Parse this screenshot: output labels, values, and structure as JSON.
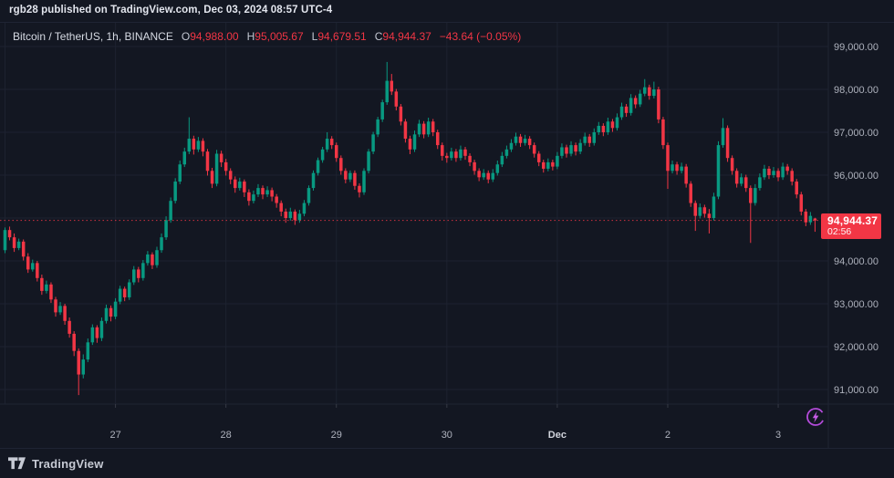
{
  "attribution": "rgb28 published on TradingView.com, Dec 03, 2024 08:57 UTC-4",
  "legend": {
    "symbol": "Bitcoin / TetherUS, 1h, BINANCE",
    "o_label": "O",
    "o_value": "94,988.00",
    "h_label": "H",
    "h_value": "95,005.67",
    "l_label": "L",
    "l_value": "94,679.51",
    "c_label": "C",
    "c_value": "94,944.37",
    "change": "−43.64 (−0.05%)"
  },
  "price_badge": {
    "price": "94,944.37",
    "countdown": "02:56"
  },
  "footer": {
    "brand": "TradingView"
  },
  "colors": {
    "background": "#131722",
    "up": "#089981",
    "down": "#f23645",
    "badge": "#f23645",
    "grid": "#1d2230",
    "axis_text": "#aeb2bd",
    "axis_text_bright": "#d1d4dc",
    "tick_mark": "#363a45",
    "separator": "#1f2433",
    "accent_purple": "#b44bdb"
  },
  "chart_data": {
    "type": "candlestick",
    "symbol": "Bitcoin / TetherUS",
    "interval": "1h",
    "exchange": "BINANCE",
    "last": {
      "open": 94988.0,
      "high": 95005.67,
      "low": 94679.51,
      "close": 94944.37,
      "change": -43.64,
      "change_pct": -0.05
    },
    "price_line": 94944.37,
    "ylim": [
      90660,
      99550
    ],
    "grid": true,
    "y_ticks": [
      {
        "label": "99,000.00",
        "value": 99000
      },
      {
        "label": "98,000.00",
        "value": 98000
      },
      {
        "label": "97,000.00",
        "value": 97000
      },
      {
        "label": "96,000.00",
        "value": 96000
      },
      {
        "label": "95,000.00",
        "value": 95000
      },
      {
        "label": "94,000.00",
        "value": 94000
      },
      {
        "label": "93,000.00",
        "value": 93000
      },
      {
        "label": "92,000.00",
        "value": 92000
      },
      {
        "label": "91,000.00",
        "value": 91000
      }
    ],
    "x_ticks": [
      {
        "label": "27",
        "index": 24,
        "bold": false
      },
      {
        "label": "28",
        "index": 48,
        "bold": false
      },
      {
        "label": "29",
        "index": 72,
        "bold": false
      },
      {
        "label": "30",
        "index": 96,
        "bold": false
      },
      {
        "label": "Dec",
        "index": 120,
        "bold": true
      },
      {
        "label": "2",
        "index": 144,
        "bold": false
      },
      {
        "label": "3",
        "index": 168,
        "bold": false
      }
    ],
    "day_boundaries": [
      0,
      24,
      48,
      72,
      96,
      120,
      144,
      168
    ],
    "candles": [
      [
        94250,
        94780,
        94180,
        94720
      ],
      [
        94720,
        94800,
        94480,
        94550
      ],
      [
        94550,
        94640,
        94210,
        94300
      ],
      [
        94300,
        94520,
        94250,
        94450
      ],
      [
        94450,
        94500,
        94010,
        94100
      ],
      [
        94100,
        94180,
        93720,
        93800
      ],
      [
        93800,
        94030,
        93750,
        93950
      ],
      [
        93950,
        94000,
        93520,
        93600
      ],
      [
        93600,
        93680,
        93210,
        93300
      ],
      [
        93300,
        93540,
        93240,
        93450
      ],
      [
        93450,
        93500,
        93020,
        93100
      ],
      [
        93100,
        93160,
        92700,
        92800
      ],
      [
        92800,
        93040,
        92740,
        92950
      ],
      [
        92950,
        93000,
        92510,
        92600
      ],
      [
        92600,
        92680,
        92210,
        92300
      ],
      [
        92300,
        92360,
        91780,
        91900
      ],
      [
        91900,
        91960,
        90870,
        91350
      ],
      [
        91350,
        91820,
        91260,
        91700
      ],
      [
        91700,
        92190,
        91640,
        92100
      ],
      [
        92100,
        92520,
        92040,
        92450
      ],
      [
        92450,
        92500,
        92090,
        92200
      ],
      [
        92200,
        92680,
        92130,
        92600
      ],
      [
        92600,
        92980,
        92540,
        92900
      ],
      [
        92900,
        92960,
        92590,
        92700
      ],
      [
        92700,
        93130,
        92640,
        93050
      ],
      [
        93050,
        93420,
        92990,
        93350
      ],
      [
        93350,
        93400,
        93060,
        93150
      ],
      [
        93150,
        93570,
        93090,
        93500
      ],
      [
        93500,
        93880,
        93440,
        93800
      ],
      [
        93800,
        93860,
        93500,
        93600
      ],
      [
        93600,
        94020,
        93540,
        93950
      ],
      [
        93950,
        94230,
        93890,
        94150
      ],
      [
        94150,
        94200,
        93810,
        93900
      ],
      [
        93900,
        94330,
        93840,
        94250
      ],
      [
        94250,
        94640,
        94190,
        94550
      ],
      [
        94550,
        95040,
        94490,
        94950
      ],
      [
        94950,
        95480,
        94890,
        95400
      ],
      [
        95400,
        95930,
        95340,
        95850
      ],
      [
        95850,
        96340,
        95790,
        96250
      ],
      [
        96250,
        96640,
        96190,
        96550
      ],
      [
        96550,
        97350,
        96490,
        96850
      ],
      [
        96850,
        96920,
        96480,
        96600
      ],
      [
        96600,
        96890,
        96540,
        96800
      ],
      [
        96800,
        96860,
        96440,
        96550
      ],
      [
        96550,
        96610,
        95990,
        96100
      ],
      [
        96100,
        96170,
        95700,
        95800
      ],
      [
        95800,
        96590,
        95740,
        96500
      ],
      [
        96500,
        96570,
        96190,
        96300
      ],
      [
        96300,
        96380,
        95990,
        96100
      ],
      [
        96100,
        96160,
        95790,
        95900
      ],
      [
        95900,
        95970,
        95590,
        95700
      ],
      [
        95700,
        95940,
        95640,
        95850
      ],
      [
        95850,
        95900,
        95490,
        95600
      ],
      [
        95600,
        95670,
        95290,
        95400
      ],
      [
        95400,
        95640,
        95340,
        95550
      ],
      [
        95550,
        95790,
        95490,
        95700
      ],
      [
        95700,
        95760,
        95440,
        95550
      ],
      [
        95550,
        95740,
        95490,
        95650
      ],
      [
        95650,
        95710,
        95390,
        95500
      ],
      [
        95500,
        95560,
        95240,
        95350
      ],
      [
        95350,
        95410,
        95040,
        95150
      ],
      [
        95150,
        95220,
        94890,
        95000
      ],
      [
        95000,
        95240,
        94940,
        95150
      ],
      [
        95150,
        95200,
        94840,
        94950
      ],
      [
        94950,
        95190,
        94890,
        95100
      ],
      [
        95100,
        95420,
        95040,
        95350
      ],
      [
        95350,
        95760,
        95290,
        95700
      ],
      [
        95700,
        96110,
        95640,
        96050
      ],
      [
        96050,
        96410,
        95990,
        96350
      ],
      [
        96350,
        96660,
        96290,
        96600
      ],
      [
        96600,
        97000,
        96540,
        96850
      ],
      [
        96850,
        96910,
        96610,
        96700
      ],
      [
        96700,
        96760,
        96310,
        96400
      ],
      [
        96400,
        96460,
        96010,
        96100
      ],
      [
        96100,
        96160,
        95810,
        95900
      ],
      [
        95900,
        96110,
        95840,
        96050
      ],
      [
        96050,
        96110,
        95660,
        95750
      ],
      [
        95750,
        95810,
        95480,
        95600
      ],
      [
        95600,
        96160,
        95540,
        96100
      ],
      [
        96100,
        96610,
        96040,
        96550
      ],
      [
        96550,
        97010,
        96490,
        96950
      ],
      [
        96950,
        97360,
        96890,
        97300
      ],
      [
        97300,
        97760,
        97240,
        97700
      ],
      [
        97700,
        98640,
        97640,
        98200
      ],
      [
        98200,
        98360,
        97870,
        97950
      ],
      [
        97950,
        98010,
        97510,
        97600
      ],
      [
        97600,
        97660,
        97160,
        97250
      ],
      [
        97250,
        97310,
        96760,
        96850
      ],
      [
        96850,
        96920,
        96490,
        96600
      ],
      [
        96600,
        97040,
        96540,
        96950
      ],
      [
        96950,
        97290,
        96890,
        97200
      ],
      [
        97200,
        97260,
        96860,
        96950
      ],
      [
        96950,
        97340,
        96890,
        97250
      ],
      [
        97250,
        97310,
        96910,
        97000
      ],
      [
        97000,
        97060,
        96610,
        96700
      ],
      [
        96700,
        96760,
        96340,
        96450
      ],
      [
        96450,
        96520,
        96290,
        96400
      ],
      [
        96400,
        96640,
        96340,
        96550
      ],
      [
        96550,
        96610,
        96310,
        96400
      ],
      [
        96400,
        96690,
        96340,
        96600
      ],
      [
        96600,
        96660,
        96360,
        96450
      ],
      [
        96450,
        96510,
        96210,
        96300
      ],
      [
        96300,
        96360,
        96010,
        96100
      ],
      [
        96100,
        96160,
        95860,
        95950
      ],
      [
        95950,
        96140,
        95890,
        96050
      ],
      [
        96050,
        96110,
        95810,
        95900
      ],
      [
        95900,
        96140,
        95840,
        96050
      ],
      [
        96050,
        96340,
        95990,
        96250
      ],
      [
        96250,
        96540,
        96190,
        96450
      ],
      [
        96450,
        96690,
        96390,
        96600
      ],
      [
        96600,
        96840,
        96540,
        96750
      ],
      [
        96750,
        96990,
        96690,
        96900
      ],
      [
        96900,
        96960,
        96660,
        96750
      ],
      [
        96750,
        96940,
        96690,
        96850
      ],
      [
        96850,
        96910,
        96610,
        96700
      ],
      [
        96700,
        96760,
        96410,
        96500
      ],
      [
        96500,
        96560,
        96210,
        96300
      ],
      [
        96300,
        96360,
        96060,
        96150
      ],
      [
        96150,
        96390,
        96090,
        96300
      ],
      [
        96300,
        96360,
        96110,
        96200
      ],
      [
        96200,
        96540,
        96140,
        96450
      ],
      [
        96450,
        96740,
        96390,
        96650
      ],
      [
        96650,
        96710,
        96410,
        96500
      ],
      [
        96500,
        96790,
        96440,
        96700
      ],
      [
        96700,
        96760,
        96460,
        96550
      ],
      [
        96550,
        96840,
        96490,
        96750
      ],
      [
        96750,
        96990,
        96690,
        96900
      ],
      [
        96900,
        96960,
        96660,
        96750
      ],
      [
        96750,
        97090,
        96690,
        97000
      ],
      [
        97000,
        97240,
        96940,
        97150
      ],
      [
        97150,
        97210,
        96910,
        97000
      ],
      [
        97000,
        97340,
        96940,
        97250
      ],
      [
        97250,
        97310,
        97010,
        97100
      ],
      [
        97100,
        97440,
        97040,
        97350
      ],
      [
        97350,
        97690,
        97290,
        97600
      ],
      [
        97600,
        97660,
        97360,
        97450
      ],
      [
        97450,
        97890,
        97390,
        97800
      ],
      [
        97800,
        97860,
        97560,
        97650
      ],
      [
        97650,
        97990,
        97590,
        97900
      ],
      [
        97900,
        98240,
        97840,
        98050
      ],
      [
        98050,
        98110,
        97760,
        97850
      ],
      [
        97850,
        98180,
        97790,
        98000
      ],
      [
        98000,
        98060,
        97210,
        97300
      ],
      [
        97300,
        97360,
        96610,
        96700
      ],
      [
        96700,
        96760,
        95680,
        96100
      ],
      [
        96100,
        96340,
        96040,
        96250
      ],
      [
        96250,
        96310,
        96010,
        96100
      ],
      [
        96100,
        96290,
        96040,
        96200
      ],
      [
        96200,
        96260,
        95710,
        95800
      ],
      [
        95800,
        95860,
        95260,
        95350
      ],
      [
        95350,
        95410,
        94700,
        95050
      ],
      [
        95050,
        95340,
        94990,
        95250
      ],
      [
        95250,
        95310,
        95010,
        95100
      ],
      [
        95100,
        95210,
        94640,
        95000
      ],
      [
        95000,
        95590,
        94940,
        95500
      ],
      [
        95500,
        96790,
        95440,
        96700
      ],
      [
        96700,
        97330,
        96640,
        97100
      ],
      [
        97100,
        97160,
        96310,
        96400
      ],
      [
        96400,
        96460,
        96010,
        96100
      ],
      [
        96100,
        96160,
        95710,
        95800
      ],
      [
        95800,
        96040,
        95740,
        95950
      ],
      [
        95950,
        96010,
        95610,
        95700
      ],
      [
        95700,
        95760,
        94420,
        95350
      ],
      [
        95350,
        95790,
        95290,
        95700
      ],
      [
        95700,
        96040,
        95640,
        95950
      ],
      [
        95950,
        96240,
        95890,
        96150
      ],
      [
        96150,
        96210,
        95910,
        96000
      ],
      [
        96000,
        96190,
        95940,
        96100
      ],
      [
        96100,
        96160,
        95860,
        95950
      ],
      [
        95950,
        96290,
        95890,
        96200
      ],
      [
        96200,
        96260,
        96010,
        96100
      ],
      [
        96100,
        96160,
        95760,
        95850
      ],
      [
        95850,
        95910,
        95460,
        95550
      ],
      [
        95550,
        95610,
        95060,
        95150
      ],
      [
        95150,
        95210,
        94810,
        94900
      ],
      [
        94900,
        95140,
        94840,
        95050
      ],
      [
        94988,
        95005.67,
        94679.51,
        94944.37
      ]
    ]
  }
}
